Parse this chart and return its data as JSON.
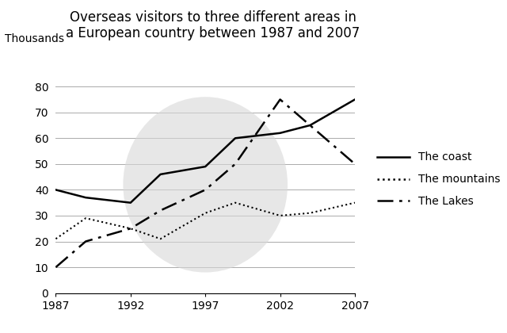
{
  "title_line1": "Overseas visitors to three different areas in",
  "title_line2": "a European country between 1987 and 2007",
  "ylabel": "Thousands",
  "years": [
    1987,
    1989,
    1992,
    1994,
    1997,
    1999,
    2002,
    2004,
    2007
  ],
  "coast": [
    40,
    37,
    35,
    46,
    49,
    60,
    62,
    65,
    75
  ],
  "mountains": [
    21,
    29,
    25,
    21,
    31,
    35,
    30,
    31,
    35
  ],
  "lakes": [
    10,
    20,
    25,
    32,
    40,
    50,
    75,
    65,
    50
  ],
  "coast_label": "The coast",
  "mountains_label": "The mountains",
  "lakes_label": "The Lakes",
  "xlim": [
    1987,
    2007
  ],
  "ylim": [
    0,
    80
  ],
  "xticks": [
    1987,
    1992,
    1997,
    2002,
    2007
  ],
  "yticks": [
    0,
    10,
    20,
    30,
    40,
    50,
    60,
    70,
    80
  ],
  "line_color": "#000000",
  "background_color": "#ffffff",
  "watermark_color": "#d8d8d8",
  "grid_color": "#aaaaaa",
  "title_fontsize": 12,
  "label_fontsize": 10,
  "legend_fontsize": 10
}
